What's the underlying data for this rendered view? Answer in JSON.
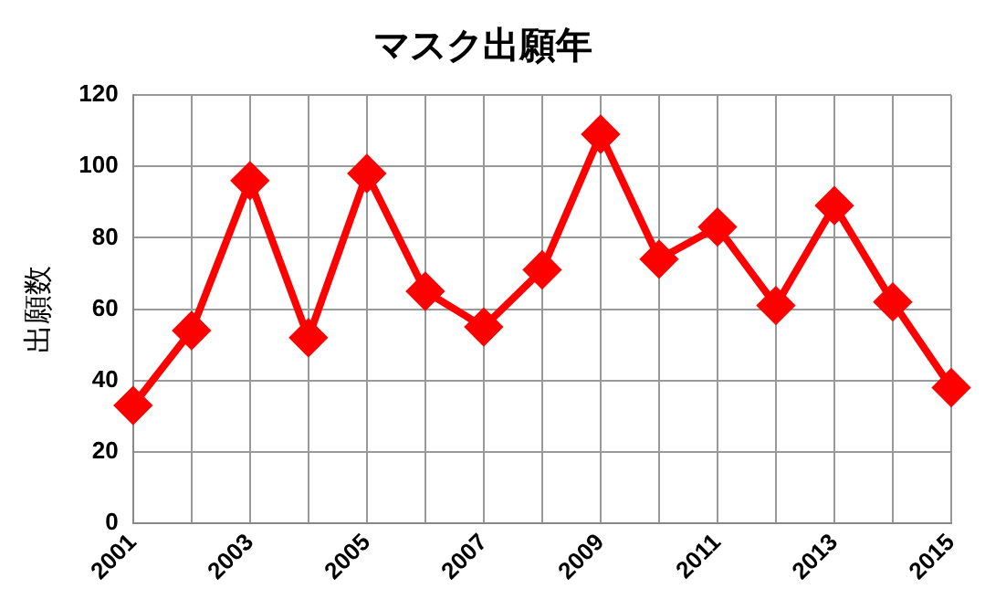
{
  "chart_data": {
    "type": "line",
    "title": "マスク出願年",
    "ylabel": "出願数",
    "categories": [
      "2001",
      null,
      "2003",
      null,
      "2005",
      null,
      "2007",
      null,
      "2009",
      null,
      "2011",
      null,
      "2013",
      null,
      "2015"
    ],
    "series": [
      {
        "color": "#ff0000",
        "values": [
          33,
          54,
          96,
          52,
          98,
          65,
          55,
          71,
          109,
          74,
          83,
          61,
          89,
          62,
          38
        ]
      }
    ],
    "ylim": [
      0,
      120
    ],
    "yticks": [
      0,
      20,
      40,
      60,
      80,
      100,
      120
    ],
    "grid": true,
    "legend": false,
    "marker": "diamond",
    "line_style": "solid"
  }
}
